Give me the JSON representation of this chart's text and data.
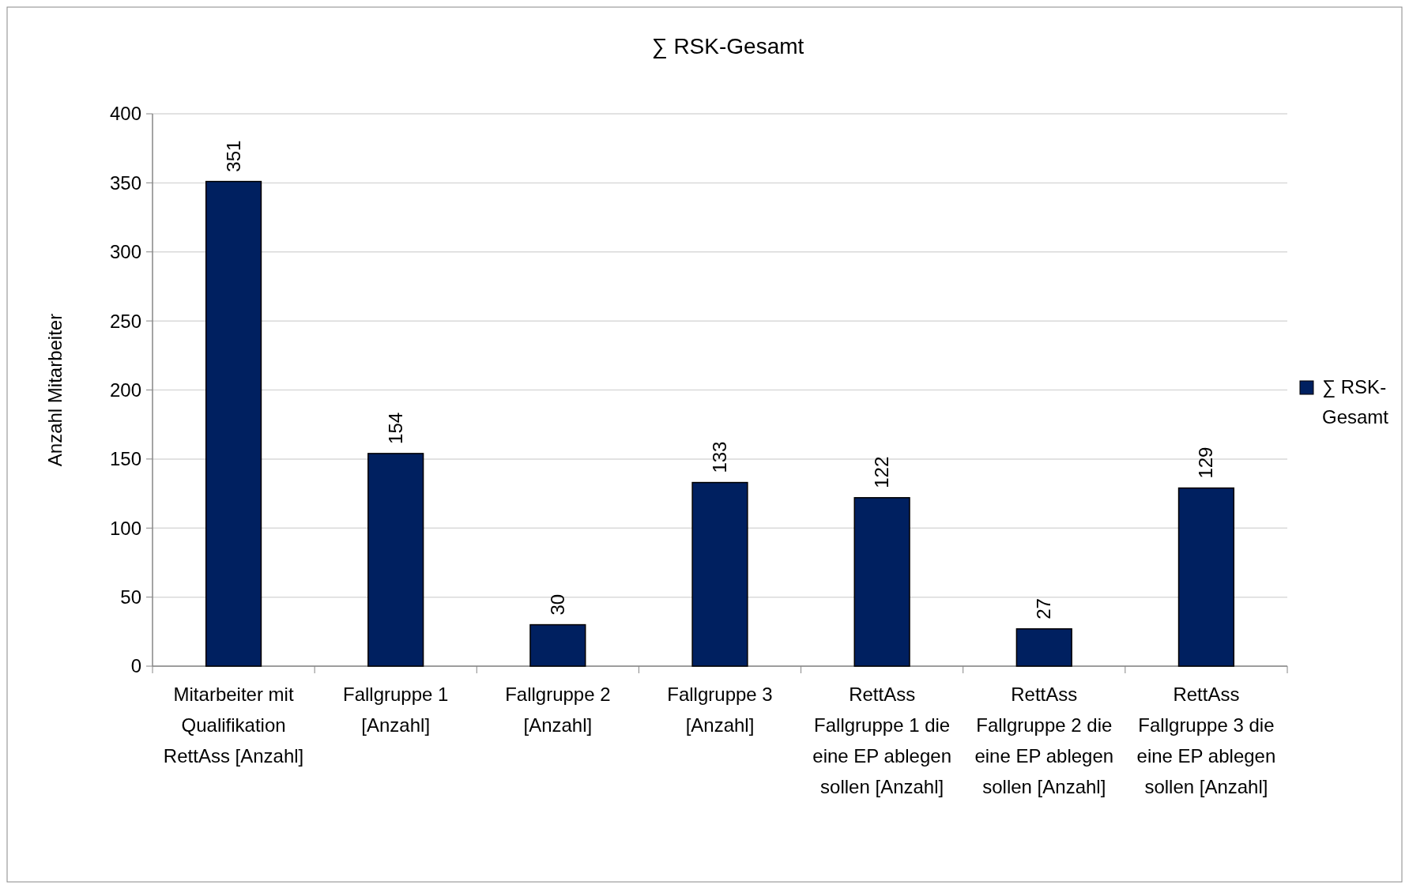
{
  "chart_data": {
    "type": "bar",
    "title": "∑ RSK-Gesamt",
    "ylabel": "Anzahl Mitarbeiter",
    "categories": [
      "Mitarbeiter mit Qualifikation RettAss [Anzahl]",
      "Fallgruppe 1 [Anzahl]",
      "Fallgruppe 2 [Anzahl]",
      "Fallgruppe 3 [Anzahl]",
      "RettAss Fallgruppe 1 die eine EP ablegen sollen [Anzahl]",
      "RettAss Fallgruppe 2 die eine EP ablegen sollen [Anzahl]",
      "RettAss Fallgruppe 3 die eine EP ablegen sollen [Anzahl]"
    ],
    "series": [
      {
        "name": "∑ RSK-Gesamt",
        "color": "#002060",
        "values": [
          351,
          154,
          30,
          133,
          122,
          27,
          129
        ]
      }
    ],
    "ylim": [
      0,
      400
    ],
    "yticks": [
      0,
      50,
      100,
      150,
      200,
      250,
      300,
      350,
      400
    ],
    "grid": "y",
    "legend": "right",
    "data_labels": true
  }
}
